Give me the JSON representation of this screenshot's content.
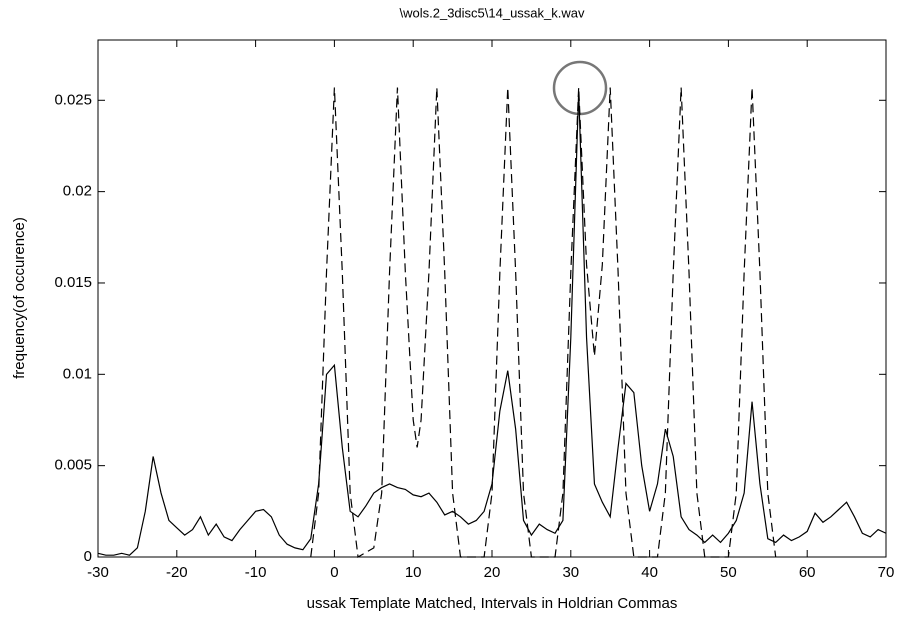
{
  "chart_data": {
    "type": "line",
    "title": "\\wols.2_3disc5\\14_ussak_k.wav",
    "xlabel": "ussak Template Matched, Intervals in Holdrian Commas",
    "ylabel": "frequency(of occurence)",
    "xlim": [
      -30,
      70
    ],
    "ylim": [
      0,
      0.0283
    ],
    "xticks": [
      -30,
      -20,
      -10,
      0,
      10,
      20,
      30,
      40,
      50,
      60,
      70
    ],
    "yticks": [
      0,
      0.005,
      0.01,
      0.015,
      0.02,
      0.025
    ],
    "grid": false,
    "series": [
      {
        "color": "#000000",
        "dash": false,
        "x": [
          -30,
          -29,
          -28,
          -27,
          -26,
          -25,
          -24,
          -23,
          -22,
          -21,
          -20,
          -19,
          -18,
          -17,
          -16,
          -15,
          -14,
          -13,
          -12,
          -11,
          -10,
          -9,
          -8,
          -7,
          -6,
          -5,
          -4,
          -3,
          -2,
          -1,
          0,
          1,
          2,
          3,
          4,
          5,
          6,
          7,
          8,
          9,
          10,
          11,
          12,
          13,
          14,
          15,
          16,
          17,
          18,
          19,
          20,
          21,
          22,
          23,
          24,
          25,
          26,
          27,
          28,
          29,
          30,
          31,
          32,
          33,
          34,
          35,
          36,
          37,
          38,
          39,
          40,
          41,
          42,
          43,
          44,
          45,
          46,
          47,
          48,
          49,
          50,
          51,
          52,
          53,
          54,
          55,
          56,
          57,
          58,
          59,
          60,
          61,
          62,
          63,
          64,
          65,
          66,
          67,
          68,
          69,
          70
        ],
        "values": [
          0.0002,
          0.0001,
          0.0001,
          0.0002,
          0.0001,
          0.0005,
          0.0025,
          0.0055,
          0.0035,
          0.002,
          0.0016,
          0.0012,
          0.0015,
          0.0022,
          0.0012,
          0.0018,
          0.0011,
          0.0009,
          0.0015,
          0.002,
          0.0025,
          0.0026,
          0.0022,
          0.0012,
          0.0007,
          0.0005,
          0.0004,
          0.001,
          0.004,
          0.01,
          0.0105,
          0.006,
          0.0025,
          0.0022,
          0.0028,
          0.0035,
          0.0038,
          0.004,
          0.0038,
          0.0037,
          0.0034,
          0.0033,
          0.0035,
          0.003,
          0.0023,
          0.0025,
          0.0022,
          0.0018,
          0.002,
          0.0025,
          0.004,
          0.008,
          0.0102,
          0.007,
          0.002,
          0.0012,
          0.0018,
          0.0015,
          0.0013,
          0.002,
          0.012,
          0.0255,
          0.012,
          0.004,
          0.003,
          0.0022,
          0.006,
          0.0095,
          0.009,
          0.005,
          0.0025,
          0.004,
          0.007,
          0.0055,
          0.0022,
          0.0015,
          0.0012,
          0.0008,
          0.0012,
          0.0008,
          0.0013,
          0.002,
          0.0035,
          0.0085,
          0.004,
          0.001,
          0.0008,
          0.0012,
          0.0009,
          0.0011,
          0.0014,
          0.0024,
          0.0019,
          0.0022,
          0.0026,
          0.003,
          0.0022,
          0.0013,
          0.0011,
          0.0015,
          0.0013
        ]
      },
      {
        "color": "#000000",
        "dash": true,
        "x": [
          -3,
          -2,
          -1,
          0,
          1,
          2,
          3,
          5,
          6,
          7,
          8,
          9,
          10,
          10.5,
          11,
          12,
          13,
          14,
          15,
          16,
          19,
          20,
          21,
          22,
          23,
          24,
          25,
          28,
          29,
          30,
          31,
          32,
          33,
          34,
          35,
          36,
          37,
          38,
          41,
          42,
          43,
          44,
          45,
          46,
          47,
          50,
          51,
          52,
          53,
          54,
          55,
          56
        ],
        "values": [
          0,
          0.0035,
          0.0156,
          0.0257,
          0.0156,
          0.0035,
          0,
          0.0005,
          0.0035,
          0.0156,
          0.0257,
          0.0156,
          0.0075,
          0.006,
          0.0075,
          0.0156,
          0.0257,
          0.0156,
          0.0035,
          0,
          0,
          0.0035,
          0.0156,
          0.0257,
          0.0156,
          0.0035,
          0,
          0,
          0.0035,
          0.0156,
          0.0257,
          0.016,
          0.011,
          0.016,
          0.0257,
          0.0156,
          0.0035,
          0,
          0,
          0.0035,
          0.0156,
          0.0257,
          0.0156,
          0.0035,
          0,
          0,
          0.0035,
          0.0156,
          0.0257,
          0.0156,
          0.0035,
          0
        ]
      }
    ]
  }
}
